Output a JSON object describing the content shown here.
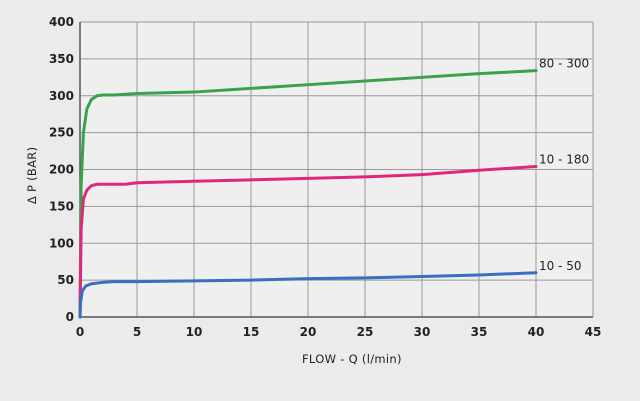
{
  "chart_data": {
    "type": "line",
    "title": "",
    "xlabel": "FLOW - Q (l/min)",
    "ylabel": "Δ P (BAR)",
    "xlim": [
      0,
      45
    ],
    "ylim": [
      0,
      400
    ],
    "x_ticks": [
      0,
      5,
      10,
      15,
      20,
      25,
      30,
      35,
      40,
      45
    ],
    "y_ticks": [
      0,
      50,
      100,
      150,
      200,
      250,
      300,
      350,
      400
    ],
    "grid": true,
    "legend": "none",
    "series": [
      {
        "name": "80 - 300",
        "color": "#3aa24a",
        "points": [
          [
            0,
            0
          ],
          [
            0.1,
            180
          ],
          [
            0.3,
            250
          ],
          [
            0.6,
            282
          ],
          [
            1,
            295
          ],
          [
            1.5,
            300
          ],
          [
            2,
            301
          ],
          [
            3,
            301
          ],
          [
            5,
            303
          ],
          [
            10,
            305
          ],
          [
            15,
            310
          ],
          [
            20,
            315
          ],
          [
            25,
            320
          ],
          [
            30,
            325
          ],
          [
            35,
            330
          ],
          [
            40,
            334
          ]
        ]
      },
      {
        "name": "10 - 180",
        "color": "#e0287a",
        "points": [
          [
            0,
            0
          ],
          [
            0.1,
            120
          ],
          [
            0.3,
            160
          ],
          [
            0.6,
            172
          ],
          [
            1,
            178
          ],
          [
            1.5,
            180
          ],
          [
            2,
            180
          ],
          [
            4,
            180
          ],
          [
            5,
            182
          ],
          [
            10,
            184
          ],
          [
            15,
            186
          ],
          [
            20,
            188
          ],
          [
            25,
            190
          ],
          [
            30,
            193
          ],
          [
            35,
            199
          ],
          [
            40,
            204
          ]
        ]
      },
      {
        "name": "10 - 50",
        "color": "#3a6fc0",
        "points": [
          [
            0,
            0
          ],
          [
            0.05,
            20
          ],
          [
            0.2,
            35
          ],
          [
            0.5,
            42
          ],
          [
            1,
            45
          ],
          [
            2,
            47
          ],
          [
            3,
            48
          ],
          [
            5,
            48
          ],
          [
            10,
            49
          ],
          [
            15,
            50
          ],
          [
            20,
            52
          ],
          [
            25,
            53
          ],
          [
            30,
            55
          ],
          [
            35,
            57
          ],
          [
            40,
            60
          ]
        ]
      }
    ]
  }
}
